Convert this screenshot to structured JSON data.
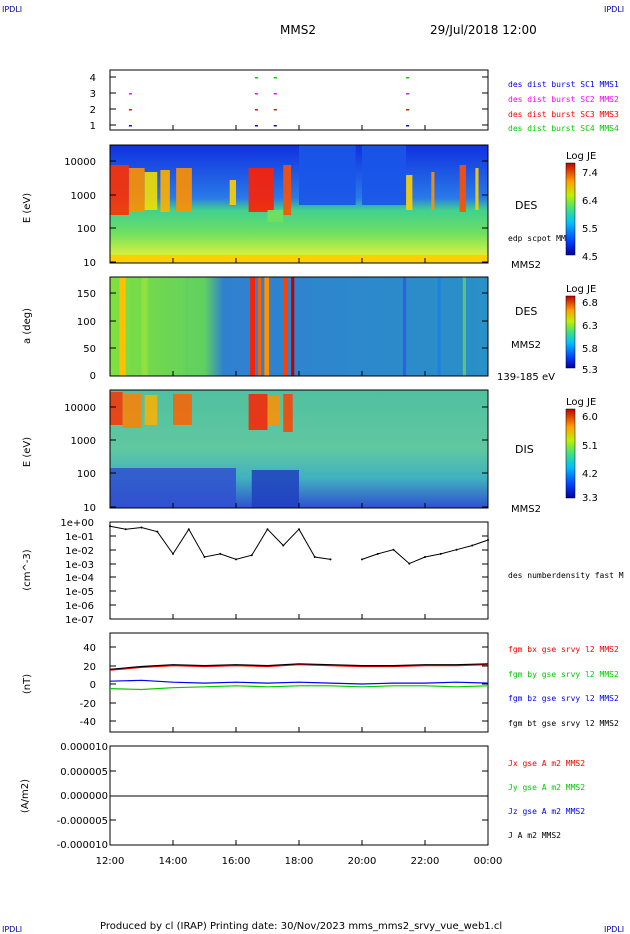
{
  "header": {
    "corner_tl": "IPDLI",
    "corner_tr": "IPDLI",
    "corner_bl": "IPDLI",
    "corner_br": "IPDLI",
    "spacecraft": "MMS2",
    "datetime": "29/Jul/2018 12:00"
  },
  "footer": {
    "text": "Produced by cl (IRAP)   Printing date: 30/Nov/2023   mms_mms2_srvy_vue_web1.cl"
  },
  "colors": {
    "blue": "#0000ff",
    "magenta": "#ff00ff",
    "red": "#ff0000",
    "green": "#00cc00",
    "black": "#000000"
  },
  "chart_data": [
    {
      "id": "burst",
      "type": "scatter",
      "yticks": [
        "4",
        "3",
        "2",
        "1"
      ],
      "xrange_hours": [
        12,
        24
      ],
      "labels": [
        {
          "text": "des dist burst SC1 MMS1",
          "color": "blue"
        },
        {
          "text": "des dist burst SC2 MMS2",
          "color": "magenta"
        },
        {
          "text": "des dist burst SC3 MMS3",
          "color": "red"
        },
        {
          "text": "des dist burst SC4 MMS4",
          "color": "green"
        }
      ],
      "burst_times": [
        12.6,
        16.6,
        17.2,
        21.4
      ]
    },
    {
      "id": "des-energy",
      "type": "heatmap",
      "ylabel": "E (eV)",
      "yticks": [
        "10000",
        "1000",
        "100",
        "10"
      ],
      "ylog_range": [
        10,
        30000
      ],
      "right_labels": [
        "DES",
        "edp scpot MMS2",
        "MMS2"
      ],
      "colorbar": {
        "title": "Log JE",
        "ticks": [
          "7.4",
          "6.4",
          "5.5",
          "4.5"
        ],
        "range": [
          4.5,
          7.4
        ]
      }
    },
    {
      "id": "des-pitch",
      "type": "heatmap",
      "ylabel": "a (deg)",
      "yticks": [
        "150",
        "100",
        "50",
        "0"
      ],
      "yrange": [
        0,
        180
      ],
      "right_labels": [
        "DES",
        "MMS2",
        "139-185 eV"
      ],
      "colorbar": {
        "title": "Log JE",
        "ticks": [
          "6.8",
          "6.3",
          "5.8",
          "5.3"
        ],
        "range": [
          5.3,
          6.8
        ]
      }
    },
    {
      "id": "dis-energy",
      "type": "heatmap",
      "ylabel": "E (eV)",
      "yticks": [
        "10000",
        "1000",
        "100",
        "10"
      ],
      "ylog_range": [
        10,
        30000
      ],
      "right_labels": [
        "DIS",
        "MMS2"
      ],
      "colorbar": {
        "title": "Log JE",
        "ticks": [
          "6.0",
          "5.1",
          "4.2",
          "3.3"
        ],
        "range": [
          3.3,
          6.0
        ]
      }
    },
    {
      "id": "density",
      "type": "line",
      "ylabel": "(cm^-3)",
      "yticks": [
        "1e+00",
        "1e-01",
        "1e-02",
        "1e-03",
        "1e-04",
        "1e-05",
        "1e-06",
        "1e-07"
      ],
      "ylog_range": [
        1e-07,
        1
      ],
      "series_label": "des numberdensity fast M",
      "x": [
        12.0,
        12.5,
        13.0,
        13.5,
        14.0,
        14.5,
        15.0,
        15.5,
        16.0,
        16.5,
        17.0,
        17.5,
        18.0,
        18.5,
        19.0,
        19.2,
        20.0,
        20.5,
        21.0,
        21.5,
        22.0,
        22.5,
        23.0,
        23.5,
        24.0
      ],
      "y": [
        0.5,
        0.3,
        0.4,
        0.2,
        0.005,
        0.3,
        0.003,
        0.005,
        0.002,
        0.004,
        0.3,
        0.02,
        0.3,
        0.003,
        0.002,
        null,
        0.002,
        0.005,
        0.01,
        0.001,
        0.003,
        0.005,
        0.01,
        0.02,
        0.05
      ]
    },
    {
      "id": "magnetic-field",
      "type": "line",
      "ylabel": "(nT)",
      "yticks": [
        "40",
        "20",
        "0",
        "-20",
        "-40"
      ],
      "yrange": [
        -50,
        50
      ],
      "series": [
        {
          "name": "fgm bx gse srvy l2 MMS2",
          "color": "red",
          "x": [
            12,
            13,
            14,
            15,
            16,
            17,
            18,
            19,
            20,
            21,
            22,
            23,
            24
          ],
          "values": [
            15,
            18,
            20,
            19,
            20,
            19,
            21,
            20,
            19,
            19,
            20,
            20,
            21
          ]
        },
        {
          "name": "fgm by gse srvy l2 MMS2",
          "color": "green",
          "x": [
            12,
            13,
            14,
            15,
            16,
            17,
            18,
            19,
            20,
            21,
            22,
            23,
            24
          ],
          "values": [
            -5,
            -6,
            -4,
            -3,
            -2,
            -3,
            -2,
            -2,
            -3,
            -2,
            -2,
            -3,
            -2
          ]
        },
        {
          "name": "fgm bz gse srvy l2 MMS2",
          "color": "blue",
          "x": [
            12,
            13,
            14,
            15,
            16,
            17,
            18,
            19,
            20,
            21,
            22,
            23,
            24
          ],
          "values": [
            3,
            4,
            2,
            1,
            2,
            1,
            2,
            1,
            0,
            1,
            1,
            2,
            1
          ]
        },
        {
          "name": "fgm bt gse srvy l2 MMS2",
          "color": "black",
          "x": [
            12,
            13,
            14,
            15,
            16,
            17,
            18,
            19,
            20,
            21,
            22,
            23,
            24
          ],
          "values": [
            16,
            19,
            21,
            20,
            21,
            20,
            22,
            21,
            20,
            20,
            21,
            21,
            22
          ]
        }
      ]
    },
    {
      "id": "current-density",
      "type": "line",
      "ylabel": "(A/m2)",
      "yticks": [
        "0.000010",
        "0.000005",
        "0.000000",
        "-0.000005",
        "-0.000010"
      ],
      "yrange": [
        -1e-05,
        1e-05
      ],
      "series": [
        {
          "name": "Jx gse A m2 MMS2",
          "color": "red"
        },
        {
          "name": "Jy gse A m2 MMS2",
          "color": "green"
        },
        {
          "name": "Jz gse A m2 MMS2",
          "color": "blue"
        },
        {
          "name": "J A m2 MMS2",
          "color": "black"
        }
      ]
    }
  ],
  "xaxis": {
    "ticks": [
      "12:00",
      "14:00",
      "16:00",
      "18:00",
      "20:00",
      "22:00",
      "00:00"
    ],
    "range_hours": [
      12,
      24
    ]
  }
}
